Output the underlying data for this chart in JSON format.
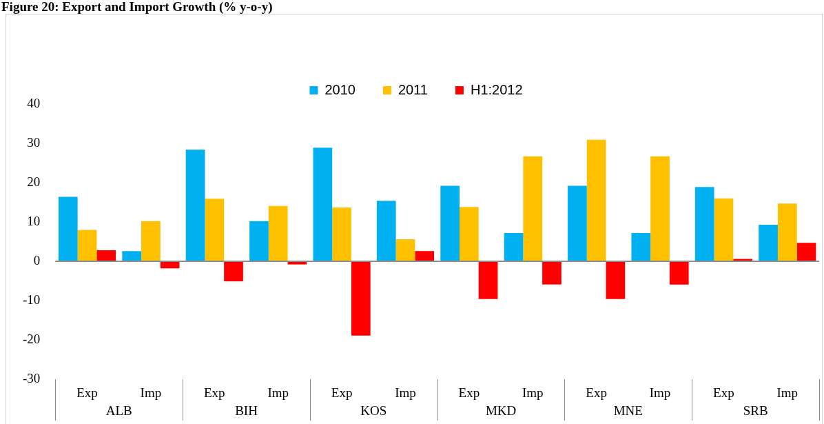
{
  "chart_data": {
    "type": "bar",
    "title": "Figure 20: Export and Import Growth (% y-o-y)",
    "categories": [
      "Exp",
      "Imp",
      "Exp",
      "Imp",
      "Exp",
      "Imp",
      "Exp",
      "Imp",
      "Exp",
      "Imp",
      "Exp",
      "Imp"
    ],
    "series": [
      {
        "name": "2010",
        "color": "#00b0f0",
        "values": [
          16.4,
          2.6,
          28.4,
          10.2,
          28.9,
          15.4,
          19.2,
          7.2,
          19.2,
          7.2,
          18.9,
          9.3
        ]
      },
      {
        "name": "2011",
        "color": "#ffc000",
        "values": [
          8.0,
          10.2,
          15.9,
          14.1,
          13.7,
          5.6,
          13.8,
          26.7,
          30.9,
          26.7,
          16.0,
          14.7
        ]
      },
      {
        "name": "H1:2012",
        "color": "#ff0000",
        "values": [
          2.8,
          -1.8,
          -5.1,
          -0.8,
          -18.9,
          2.6,
          -9.6,
          -5.9,
          -9.6,
          -5.9,
          0.6,
          4.7
        ]
      }
    ],
    "annotations": [
      "ALB",
      "BIH",
      "KOS",
      "MKD",
      "MNE",
      "SRB"
    ],
    "ylim": [
      -30,
      40
    ],
    "yticks": [
      -30,
      -20,
      -10,
      0,
      10,
      20,
      30,
      40
    ],
    "grid": false,
    "legend": "top"
  }
}
